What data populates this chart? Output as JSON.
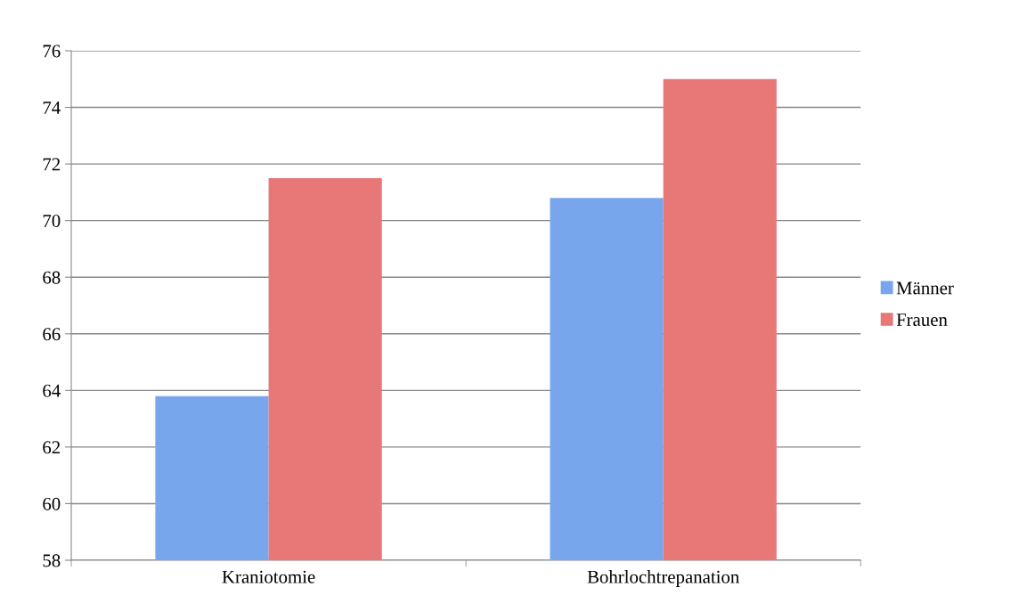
{
  "chart_data": {
    "type": "bar",
    "categories": [
      "Kraniotomie",
      "Bohrlochtrepanation"
    ],
    "series": [
      {
        "name": "Männer",
        "color": "#78a6ec",
        "values": [
          63.8,
          70.8
        ]
      },
      {
        "name": "Frauen",
        "color": "#e87878",
        "values": [
          71.5,
          75.0
        ]
      }
    ],
    "ylim": [
      58,
      76
    ],
    "yticks": [
      58,
      60,
      62,
      64,
      66,
      68,
      70,
      72,
      74,
      76
    ],
    "grid": "y",
    "legend": "right"
  }
}
